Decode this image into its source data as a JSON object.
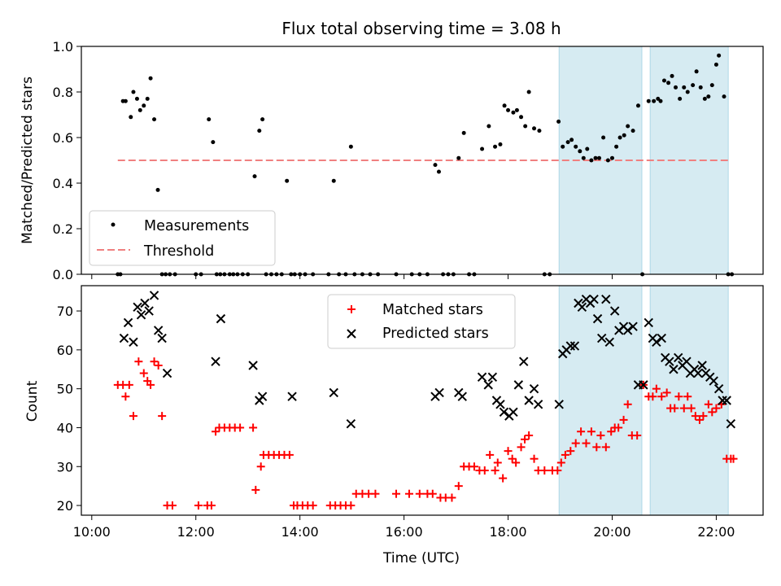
{
  "title": "Flux total observing time = 3.08 h",
  "colors": {
    "measurement": "#000000",
    "threshold": "#f08080",
    "matched": "#ff0000",
    "predicted": "#000000",
    "shade": "#add8e6"
  },
  "chart_data": [
    {
      "type": "scatter",
      "ylabel": "Matched/Predicted stars",
      "xlabel": "",
      "xlim": [
        9.8,
        22.9
      ],
      "ylim": [
        0.0,
        1.0
      ],
      "yticks": [
        "0.0",
        "0.2",
        "0.4",
        "0.6",
        "0.8",
        "1.0"
      ],
      "legend_position": "lower-left",
      "threshold": {
        "name": "Threshold",
        "value": 0.5,
        "x_range": [
          10.5,
          22.25
        ]
      },
      "shaded_regions": [
        [
          18.98,
          20.57
        ],
        [
          20.73,
          22.23
        ]
      ],
      "series": [
        {
          "name": "Measurements",
          "x": [
            10.5,
            10.55,
            10.6,
            10.65,
            10.75,
            10.8,
            10.87,
            10.93,
            11.0,
            11.07,
            11.13,
            11.2,
            11.27,
            11.35,
            11.42,
            11.5,
            11.6,
            12.0,
            12.1,
            12.25,
            12.33,
            12.4,
            12.47,
            12.55,
            12.65,
            12.72,
            12.8,
            12.9,
            13.0,
            13.13,
            13.22,
            13.28,
            13.35,
            13.45,
            13.55,
            13.65,
            13.75,
            13.83,
            13.9,
            14.0,
            14.1,
            14.25,
            14.55,
            14.65,
            14.75,
            14.88,
            14.98,
            15.05,
            15.2,
            15.35,
            15.5,
            15.85,
            16.15,
            16.3,
            16.45,
            16.6,
            16.67,
            16.75,
            16.85,
            16.95,
            17.05,
            17.15,
            17.25,
            17.35,
            17.5,
            17.63,
            17.75,
            17.85,
            17.93,
            18.0,
            18.1,
            18.17,
            18.25,
            18.33,
            18.4,
            18.5,
            18.6,
            18.7,
            18.8,
            18.97,
            19.05,
            19.15,
            19.22,
            19.3,
            19.38,
            19.45,
            19.52,
            19.6,
            19.68,
            19.75,
            19.83,
            19.92,
            20.0,
            20.08,
            20.15,
            20.23,
            20.3,
            20.4,
            20.5,
            20.58,
            20.7,
            20.8,
            20.88,
            20.93,
            21.0,
            21.08,
            21.15,
            21.22,
            21.3,
            21.38,
            21.45,
            21.55,
            21.62,
            21.7,
            21.78,
            21.85,
            21.92,
            22.0,
            22.05,
            22.15,
            22.23,
            22.3
          ],
          "y": [
            0.0,
            0.0,
            0.76,
            0.76,
            0.69,
            0.8,
            0.77,
            0.72,
            0.74,
            0.77,
            0.86,
            0.68,
            0.37,
            0.0,
            0.0,
            0.0,
            0.0,
            0.0,
            0.0,
            0.68,
            0.58,
            0.0,
            0.0,
            0.0,
            0.0,
            0.0,
            0.0,
            0.0,
            0.0,
            0.43,
            0.63,
            0.68,
            0.0,
            0.0,
            0.0,
            0.0,
            0.41,
            0.0,
            0.0,
            0.0,
            0.0,
            0.0,
            0.0,
            0.41,
            0.0,
            0.0,
            0.56,
            0.0,
            0.0,
            0.0,
            0.0,
            0.0,
            0.0,
            0.0,
            0.0,
            0.48,
            0.45,
            0.0,
            0.0,
            0.0,
            0.51,
            0.62,
            0.0,
            0.0,
            0.55,
            0.65,
            0.56,
            0.57,
            0.74,
            0.72,
            0.71,
            0.72,
            0.69,
            0.65,
            0.8,
            0.64,
            0.63,
            0.0,
            0.0,
            0.67,
            0.56,
            0.58,
            0.59,
            0.56,
            0.54,
            0.51,
            0.55,
            0.5,
            0.51,
            0.51,
            0.6,
            0.5,
            0.51,
            0.56,
            0.6,
            0.61,
            0.65,
            0.63,
            0.74,
            0.0,
            0.76,
            0.76,
            0.77,
            0.76,
            0.85,
            0.84,
            0.87,
            0.82,
            0.77,
            0.82,
            0.8,
            0.83,
            0.89,
            0.82,
            0.77,
            0.78,
            0.83,
            0.92,
            0.96,
            0.78,
            0.0,
            0.0
          ]
        }
      ]
    },
    {
      "type": "scatter",
      "ylabel": "Count",
      "xlabel": "Time (UTC)",
      "xlim": [
        9.8,
        22.9
      ],
      "ylim": [
        17.5,
        76.5
      ],
      "yticks": [
        "20",
        "30",
        "40",
        "50",
        "60",
        "70"
      ],
      "xticks": [
        "10:00",
        "12:00",
        "14:00",
        "16:00",
        "18:00",
        "20:00",
        "22:00"
      ],
      "legend_position": "top-center",
      "shaded_regions": [
        [
          18.98,
          20.57
        ],
        [
          20.73,
          22.23
        ]
      ],
      "series": [
        {
          "name": "Matched stars",
          "x": [
            10.5,
            10.6,
            10.65,
            10.72,
            10.8,
            10.9,
            11.0,
            11.07,
            11.13,
            11.2,
            11.28,
            11.35,
            11.45,
            11.55,
            12.05,
            12.22,
            12.3,
            12.38,
            12.45,
            12.55,
            12.65,
            12.75,
            12.85,
            13.1,
            13.15,
            13.25,
            13.3,
            13.4,
            13.5,
            13.6,
            13.7,
            13.8,
            13.88,
            13.95,
            14.05,
            14.15,
            14.25,
            14.58,
            14.68,
            14.78,
            14.88,
            14.98,
            15.08,
            15.2,
            15.32,
            15.45,
            15.85,
            16.1,
            16.3,
            16.45,
            16.55,
            16.7,
            16.8,
            16.92,
            17.05,
            17.15,
            17.25,
            17.35,
            17.45,
            17.55,
            17.65,
            17.75,
            17.8,
            17.9,
            18.0,
            18.08,
            18.15,
            18.25,
            18.32,
            18.4,
            18.5,
            18.58,
            18.7,
            18.85,
            18.95,
            19.02,
            19.1,
            19.2,
            19.3,
            19.4,
            19.5,
            19.6,
            19.7,
            19.78,
            19.88,
            19.98,
            20.05,
            20.12,
            20.22,
            20.3,
            20.38,
            20.48,
            20.6,
            20.7,
            20.78,
            20.85,
            20.95,
            21.05,
            21.12,
            21.2,
            21.28,
            21.38,
            21.45,
            21.52,
            21.6,
            21.68,
            21.75,
            21.85,
            21.92,
            22.0,
            22.1,
            22.2,
            22.28,
            22.33
          ],
          "y": [
            51,
            51,
            48,
            51,
            43,
            57,
            54,
            52,
            51,
            57,
            56,
            43,
            20,
            20,
            20,
            20,
            20,
            39,
            40,
            40,
            40,
            40,
            40,
            40,
            24,
            30,
            33,
            33,
            33,
            33,
            33,
            33,
            20,
            20,
            20,
            20,
            20,
            20,
            20,
            20,
            20,
            20,
            23,
            23,
            23,
            23,
            23,
            23,
            23,
            23,
            23,
            22,
            22,
            22,
            25,
            30,
            30,
            30,
            29,
            29,
            33,
            29,
            31,
            27,
            34,
            32,
            31,
            35,
            37,
            38,
            32,
            29,
            29,
            29,
            29,
            31,
            33,
            34,
            36,
            39,
            36,
            39,
            35,
            38,
            35,
            39,
            40,
            40,
            42,
            46,
            38,
            38,
            51,
            48,
            48,
            50,
            48,
            49,
            45,
            45,
            48,
            45,
            48,
            45,
            43,
            42,
            43,
            46,
            44,
            45,
            46,
            32,
            32,
            32
          ],
          "marker": "plus"
        },
        {
          "name": "Predicted stars",
          "x": [
            10.62,
            10.7,
            10.8,
            10.88,
            10.95,
            11.02,
            11.1,
            11.2,
            11.28,
            11.35,
            11.45,
            12.38,
            12.48,
            13.1,
            13.22,
            13.28,
            13.85,
            14.65,
            14.98,
            16.6,
            16.68,
            17.05,
            17.12,
            17.5,
            17.62,
            17.7,
            17.78,
            17.85,
            17.92,
            18.02,
            18.1,
            18.2,
            18.3,
            18.4,
            18.5,
            18.58,
            18.98,
            19.05,
            19.12,
            19.2,
            19.28,
            19.35,
            19.42,
            19.5,
            19.58,
            19.65,
            19.72,
            19.8,
            19.88,
            19.95,
            20.05,
            20.13,
            20.22,
            20.3,
            20.4,
            20.5,
            20.6,
            20.7,
            20.78,
            20.85,
            20.95,
            21.02,
            21.1,
            21.18,
            21.27,
            21.35,
            21.43,
            21.5,
            21.58,
            21.65,
            21.73,
            21.8,
            21.88,
            21.95,
            22.05,
            22.12,
            22.2,
            22.28
          ],
          "y": [
            63,
            67,
            62,
            71,
            69,
            72,
            70,
            74,
            65,
            63,
            54,
            57,
            68,
            56,
            47,
            48,
            48,
            49,
            41,
            48,
            49,
            49,
            48,
            53,
            51,
            53,
            47,
            46,
            44,
            43,
            44,
            51,
            57,
            47,
            50,
            46,
            46,
            59,
            60,
            61,
            61,
            72,
            71,
            73,
            72,
            73,
            68,
            63,
            73,
            62,
            70,
            65,
            66,
            65,
            66,
            51,
            51,
            67,
            63,
            62,
            63,
            58,
            57,
            55,
            58,
            56,
            57,
            54,
            55,
            54,
            56,
            54,
            53,
            52,
            50,
            47,
            47,
            41
          ],
          "marker": "x"
        }
      ]
    }
  ]
}
